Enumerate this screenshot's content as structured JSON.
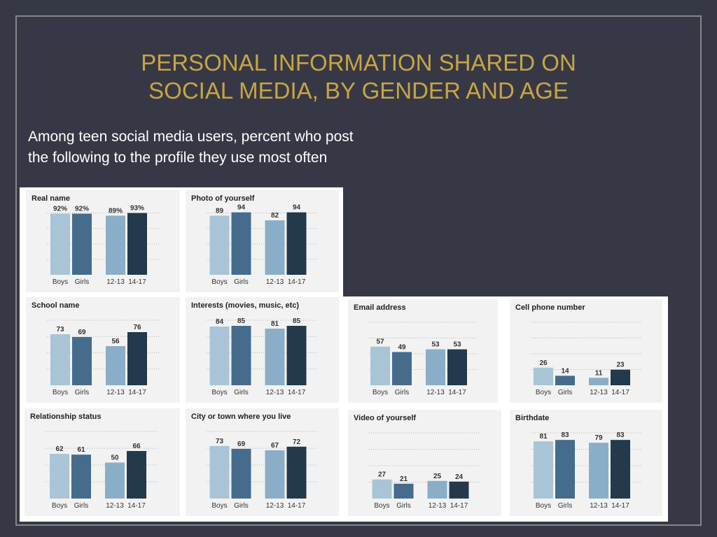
{
  "slide": {
    "title_line1": "PERSONAL INFORMATION SHARED ON",
    "title_line2": "SOCIAL MEDIA, BY GENDER AND AGE",
    "subtitle_line1": "Among teen social media users, percent who post",
    "subtitle_line2": "the following to the profile they use most often"
  },
  "colors": {
    "background": "#363945",
    "title": "#c9a445",
    "boys": "#a9c4d6",
    "girls": "#456c8c",
    "age_12_13": "#8aaec7",
    "age_14_17": "#23394c"
  },
  "chart_data": [
    {
      "type": "bar",
      "title": "Real name",
      "categories": [
        "Boys",
        "Girls",
        "12-13",
        "14-17"
      ],
      "values": [
        92,
        92,
        89,
        93
      ],
      "labels": [
        "92%",
        "92%",
        "89%",
        "93%"
      ],
      "ylim": [
        0,
        100
      ]
    },
    {
      "type": "bar",
      "title": "Photo of yourself",
      "categories": [
        "Boys",
        "Girls",
        "12-13",
        "14-17"
      ],
      "values": [
        89,
        94,
        82,
        94
      ],
      "labels": [
        "89",
        "94",
        "82",
        "94"
      ],
      "ylim": [
        0,
        100
      ]
    },
    {
      "type": "bar",
      "title": "School name",
      "categories": [
        "Boys",
        "Girls",
        "12-13",
        "14-17"
      ],
      "values": [
        73,
        69,
        56,
        76
      ],
      "labels": [
        "73",
        "69",
        "56",
        "76"
      ],
      "ylim": [
        0,
        100
      ]
    },
    {
      "type": "bar",
      "title": "Interests (movies, music, etc)",
      "categories": [
        "Boys",
        "Girls",
        "12-13",
        "14-17"
      ],
      "values": [
        84,
        85,
        81,
        85
      ],
      "labels": [
        "84",
        "85",
        "81",
        "85"
      ],
      "ylim": [
        0,
        100
      ]
    },
    {
      "type": "bar",
      "title": "Email address",
      "categories": [
        "Boys",
        "Girls",
        "12-13",
        "14-17"
      ],
      "values": [
        57,
        49,
        53,
        53
      ],
      "labels": [
        "57",
        "49",
        "53",
        "53"
      ],
      "ylim": [
        0,
        100
      ]
    },
    {
      "type": "bar",
      "title": "Cell phone number",
      "categories": [
        "Boys",
        "Girls",
        "12-13",
        "14-17"
      ],
      "values": [
        26,
        14,
        11,
        23
      ],
      "labels": [
        "26",
        "14",
        "11",
        "23"
      ],
      "ylim": [
        0,
        100
      ]
    },
    {
      "type": "bar",
      "title": "Relationship status",
      "categories": [
        "Boys",
        "Girls",
        "12-13",
        "14-17"
      ],
      "values": [
        62,
        61,
        50,
        66
      ],
      "labels": [
        "62",
        "61",
        "50",
        "66"
      ],
      "ylim": [
        0,
        100
      ]
    },
    {
      "type": "bar",
      "title": "City or town where you live",
      "categories": [
        "Boys",
        "Girls",
        "12-13",
        "14-17"
      ],
      "values": [
        73,
        69,
        67,
        72
      ],
      "labels": [
        "73",
        "69",
        "67",
        "72"
      ],
      "ylim": [
        0,
        100
      ]
    },
    {
      "type": "bar",
      "title": "Video of yourself",
      "categories": [
        "Boys",
        "Girls",
        "12-13",
        "14-17"
      ],
      "values": [
        27,
        21,
        25,
        24
      ],
      "labels": [
        "27",
        "21",
        "25",
        "24"
      ],
      "ylim": [
        0,
        100
      ]
    },
    {
      "type": "bar",
      "title": "Birthdate",
      "categories": [
        "Boys",
        "Girls",
        "12-13",
        "14-17"
      ],
      "values": [
        81,
        83,
        79,
        83
      ],
      "labels": [
        "81",
        "83",
        "79",
        "83"
      ],
      "ylim": [
        0,
        100
      ]
    }
  ]
}
